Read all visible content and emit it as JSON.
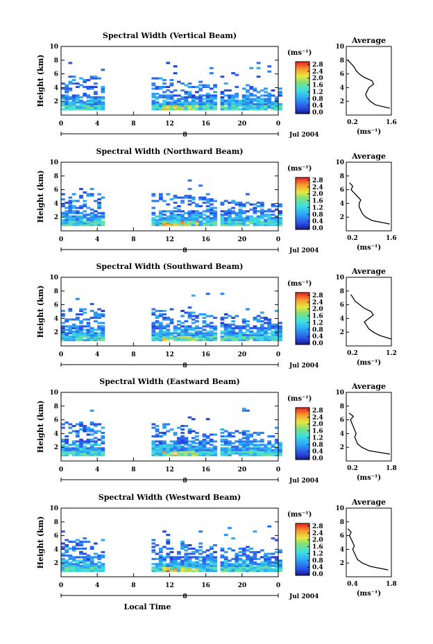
{
  "figure": {
    "xlabel": "Local Time",
    "date_label": "Jul 2004",
    "day_marker": "8",
    "ylabel": "Height (km)",
    "unit_label": "(ms⁻¹)",
    "colorbar_ticks": [
      "2.8",
      "2.4",
      "2.0",
      "1.6",
      "1.2",
      "0.8",
      "0.4",
      "0.0"
    ],
    "avg_title": "Average",
    "avg_unit": "(ms⁻¹)"
  },
  "chart_data": [
    {
      "type": "heatmap",
      "title": "Spectral Width (Vertical Beam)",
      "x_ticks": [
        "0",
        "4",
        "8",
        "12",
        "16",
        "20",
        "0"
      ],
      "xlim": [
        0,
        24
      ],
      "y_ticks": [
        "2",
        "4",
        "6",
        "8",
        "10"
      ],
      "ylim": [
        0,
        10
      ],
      "colorbar_range": [
        0.0,
        3.0
      ],
      "data_gaps_hours": [
        [
          4.7,
          10.0
        ],
        [
          17.0,
          17.4
        ]
      ],
      "profile": {
        "xlim": [
          0.2,
          1.6
        ],
        "x_ticks": [
          "0.2",
          "1.6"
        ],
        "heights": [
          1.0,
          1.5,
          2.0,
          2.5,
          3.0,
          3.5,
          4.0,
          4.5,
          5.0,
          5.5,
          6.0,
          6.5,
          7.0,
          7.5,
          8.0
        ],
        "values": [
          1.55,
          1.1,
          0.95,
          0.85,
          0.8,
          0.85,
          0.9,
          1.05,
          1.0,
          0.75,
          0.6,
          0.5,
          0.45,
          0.35,
          0.25
        ]
      }
    },
    {
      "type": "heatmap",
      "title": "Spectral Width (Northward Beam)",
      "x_ticks": [
        "0",
        "4",
        "8",
        "12",
        "16",
        "20",
        "0"
      ],
      "xlim": [
        0,
        24
      ],
      "y_ticks": [
        "2",
        "4",
        "6",
        "8",
        "10"
      ],
      "ylim": [
        0,
        10
      ],
      "colorbar_range": [
        0.0,
        3.0
      ],
      "data_gaps_hours": [
        [
          4.7,
          10.0
        ],
        [
          17.0,
          17.4
        ]
      ],
      "profile": {
        "xlim": [
          0.2,
          1.6
        ],
        "x_ticks": [
          "0.2",
          "1.6"
        ],
        "heights": [
          1.0,
          1.5,
          2.0,
          2.5,
          3.0,
          3.5,
          4.0,
          4.5,
          5.0,
          5.5,
          6.0,
          6.5,
          7.0
        ],
        "values": [
          1.55,
          1.0,
          0.8,
          0.7,
          0.65,
          0.6,
          0.6,
          0.65,
          0.55,
          0.45,
          0.35,
          0.4,
          0.3
        ]
      }
    },
    {
      "type": "heatmap",
      "title": "Spectral Width (Southward Beam)",
      "x_ticks": [
        "0",
        "4",
        "8",
        "12",
        "16",
        "20",
        "0"
      ],
      "xlim": [
        0,
        24
      ],
      "y_ticks": [
        "2",
        "4",
        "6",
        "8",
        "10"
      ],
      "ylim": [
        0,
        10
      ],
      "colorbar_range": [
        0.0,
        3.0
      ],
      "data_gaps_hours": [
        [
          4.7,
          10.0
        ],
        [
          17.0,
          17.4
        ]
      ],
      "profile": {
        "xlim": [
          0.2,
          1.2
        ],
        "x_ticks": [
          "0.2",
          "1.2"
        ],
        "heights": [
          1.0,
          1.5,
          2.0,
          2.5,
          3.0,
          3.5,
          4.0,
          4.5,
          5.0,
          5.5,
          6.0,
          6.5,
          7.0,
          7.5
        ],
        "values": [
          1.2,
          0.95,
          0.8,
          0.7,
          0.65,
          0.6,
          0.7,
          0.8,
          0.75,
          0.6,
          0.5,
          0.4,
          0.35,
          0.3
        ]
      }
    },
    {
      "type": "heatmap",
      "title": "Spectral Width (Eastward Beam)",
      "x_ticks": [
        "0",
        "4",
        "8",
        "12",
        "16",
        "20",
        "0"
      ],
      "xlim": [
        0,
        24
      ],
      "y_ticks": [
        "2",
        "4",
        "6",
        "8",
        "10"
      ],
      "ylim": [
        0,
        10
      ],
      "colorbar_range": [
        0.0,
        3.0
      ],
      "data_gaps_hours": [
        [
          4.7,
          10.0
        ],
        [
          17.0,
          17.4
        ]
      ],
      "profile": {
        "xlim": [
          0.2,
          1.8
        ],
        "x_ticks": [
          "0.2",
          "1.8"
        ],
        "heights": [
          1.0,
          1.5,
          2.0,
          2.5,
          3.0,
          3.5,
          4.0,
          4.5,
          5.0,
          5.5,
          6.0,
          6.5,
          7.0
        ],
        "values": [
          1.75,
          1.0,
          0.75,
          0.6,
          0.55,
          0.5,
          0.55,
          0.5,
          0.45,
          0.4,
          0.35,
          0.45,
          0.3
        ]
      }
    },
    {
      "type": "heatmap",
      "title": "Spectral Width (Westward Beam)",
      "x_ticks": [
        "0",
        "4",
        "8",
        "12",
        "16",
        "20",
        "0"
      ],
      "xlim": [
        0,
        24
      ],
      "y_ticks": [
        "2",
        "4",
        "6",
        "8",
        "10"
      ],
      "ylim": [
        0,
        10
      ],
      "colorbar_range": [
        0.0,
        3.0
      ],
      "data_gaps_hours": [
        [
          4.7,
          10.0
        ],
        [
          17.0,
          17.4
        ]
      ],
      "profile": {
        "xlim": [
          0.4,
          1.8
        ],
        "x_ticks": [
          "0.4",
          "1.8"
        ],
        "heights": [
          1.0,
          1.5,
          2.0,
          2.5,
          3.0,
          3.5,
          4.0,
          4.5,
          5.0,
          5.5,
          6.0,
          6.5,
          7.0
        ],
        "values": [
          1.7,
          1.15,
          0.9,
          0.75,
          0.7,
          0.65,
          0.6,
          0.65,
          0.6,
          0.55,
          0.5,
          0.55,
          0.45
        ]
      }
    }
  ]
}
